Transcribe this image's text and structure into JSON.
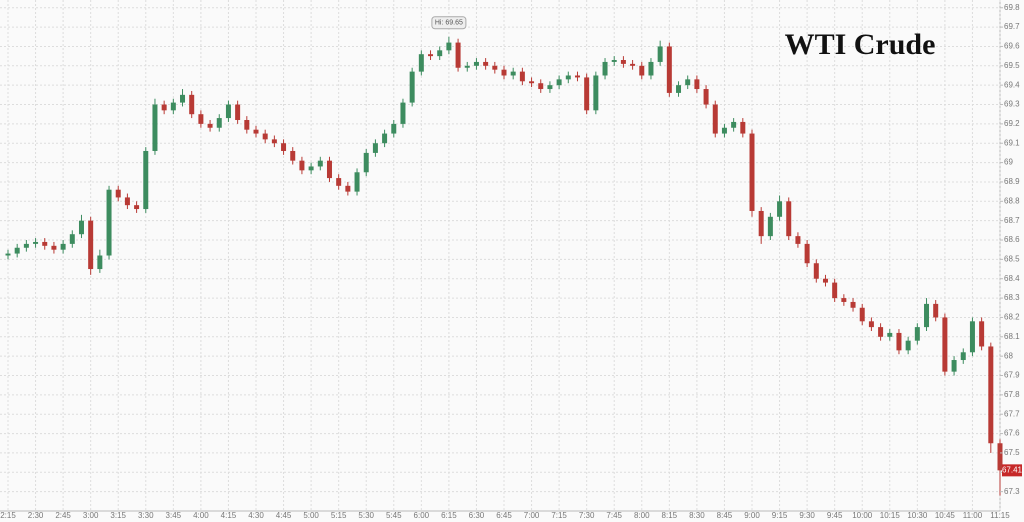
{
  "chart_data": {
    "type": "candlestick",
    "title": "WTI Crude",
    "categories": [
      "2:15",
      null,
      null,
      "2:30",
      null,
      null,
      "2:45",
      null,
      null,
      "3:00",
      null,
      null,
      "3:15",
      null,
      null,
      "3:30",
      null,
      null,
      "3:45",
      null,
      null,
      "4:00",
      null,
      null,
      "4:15",
      null,
      null,
      "4:30",
      null,
      null,
      "4:45",
      null,
      null,
      "5:00",
      null,
      null,
      "5:15",
      null,
      null,
      "5:30",
      null,
      null,
      "5:45",
      null,
      null,
      "6:00",
      null,
      null,
      "6:15",
      null,
      null,
      "6:30",
      null,
      null,
      "6:45",
      null,
      null,
      "7:00",
      null,
      null,
      "7:15",
      null,
      null,
      "7:30",
      null,
      null,
      "7:45",
      null,
      null,
      "8:00",
      null,
      null,
      "8:15",
      null,
      null,
      "8:30",
      null,
      null,
      "8:45",
      null,
      null,
      "9:00",
      null,
      null,
      "9:15",
      null,
      null,
      "9:30",
      null,
      null,
      "9:45",
      null,
      null,
      "10:00",
      null,
      null,
      "10:15",
      null,
      null,
      "10:30",
      null,
      null,
      "10:45",
      null,
      null,
      "11:00",
      null,
      null,
      "11:15"
    ],
    "open": [
      68.52,
      68.53,
      68.56,
      68.58,
      68.59,
      68.57,
      68.55,
      68.58,
      68.63,
      68.7,
      68.45,
      68.52,
      68.86,
      68.82,
      68.78,
      68.76,
      69.06,
      69.3,
      69.27,
      69.31,
      69.35,
      69.25,
      69.2,
      69.18,
      69.23,
      69.3,
      69.22,
      69.17,
      69.15,
      69.12,
      69.1,
      69.06,
      69.01,
      68.96,
      68.98,
      69.01,
      68.92,
      68.88,
      68.85,
      68.95,
      69.05,
      69.1,
      69.15,
      69.2,
      69.31,
      69.47,
      69.56,
      69.55,
      69.58,
      69.62,
      69.49,
      69.5,
      69.52,
      69.5,
      69.48,
      69.45,
      69.47,
      69.42,
      69.41,
      69.38,
      69.4,
      69.43,
      69.45,
      69.44,
      69.27,
      69.45,
      69.52,
      69.53,
      69.51,
      69.5,
      69.45,
      69.52,
      69.6,
      69.36,
      69.4,
      69.43,
      69.38,
      69.3,
      69.15,
      69.18,
      69.21,
      69.15,
      68.75,
      68.62,
      68.72,
      68.8,
      68.62,
      68.58,
      68.48,
      68.4,
      68.38,
      68.3,
      68.28,
      68.25,
      68.18,
      68.15,
      68.1,
      68.12,
      68.03,
      68.08,
      68.15,
      68.27,
      68.2,
      67.92,
      67.98,
      68.02,
      68.18,
      68.05,
      67.55
    ],
    "high": [
      68.55,
      68.58,
      68.6,
      68.61,
      68.61,
      68.59,
      68.6,
      68.65,
      68.73,
      68.72,
      68.55,
      68.88,
      68.88,
      68.84,
      68.8,
      69.08,
      69.33,
      69.32,
      69.33,
      69.38,
      69.37,
      69.27,
      69.22,
      69.25,
      69.32,
      69.32,
      69.24,
      69.19,
      69.17,
      69.14,
      69.12,
      69.08,
      69.03,
      69.0,
      69.03,
      69.03,
      68.94,
      68.9,
      68.97,
      69.07,
      69.12,
      69.17,
      69.22,
      69.33,
      69.49,
      69.58,
      69.58,
      69.6,
      69.65,
      69.64,
      69.52,
      69.54,
      69.54,
      69.52,
      69.5,
      69.49,
      69.49,
      69.44,
      69.43,
      69.42,
      69.45,
      69.47,
      69.47,
      69.46,
      69.47,
      69.54,
      69.55,
      69.55,
      69.53,
      69.52,
      69.54,
      69.63,
      69.62,
      69.42,
      69.45,
      69.45,
      69.4,
      69.32,
      69.2,
      69.23,
      69.23,
      69.17,
      68.77,
      68.74,
      68.83,
      68.82,
      68.64,
      68.6,
      68.5,
      68.42,
      68.4,
      68.32,
      68.3,
      68.27,
      68.2,
      68.17,
      68.14,
      68.14,
      68.1,
      68.17,
      68.3,
      68.29,
      68.22,
      68.0,
      68.04,
      68.2,
      68.2,
      68.07,
      67.57
    ],
    "low": [
      68.5,
      68.51,
      68.54,
      68.56,
      68.55,
      68.53,
      68.53,
      68.56,
      68.61,
      68.42,
      68.43,
      68.5,
      68.8,
      68.76,
      68.74,
      68.74,
      69.04,
      69.25,
      69.25,
      69.29,
      69.23,
      69.18,
      69.16,
      69.16,
      69.21,
      69.2,
      69.15,
      69.13,
      69.1,
      69.08,
      69.04,
      68.99,
      68.94,
      68.94,
      68.96,
      68.9,
      68.86,
      68.83,
      68.83,
      68.93,
      69.03,
      69.08,
      69.13,
      69.18,
      69.29,
      69.45,
      69.53,
      69.53,
      69.56,
      69.47,
      69.47,
      69.48,
      69.48,
      69.46,
      69.43,
      69.43,
      69.4,
      69.39,
      69.36,
      69.36,
      69.38,
      69.41,
      69.42,
      69.25,
      69.25,
      69.43,
      69.5,
      69.49,
      69.48,
      69.43,
      69.43,
      69.5,
      69.34,
      69.34,
      69.38,
      69.36,
      69.28,
      69.13,
      69.13,
      69.16,
      69.13,
      68.72,
      68.58,
      68.6,
      68.7,
      68.6,
      68.56,
      68.46,
      68.38,
      68.36,
      68.28,
      68.26,
      68.23,
      68.16,
      68.13,
      68.08,
      68.08,
      68.01,
      68.01,
      68.06,
      68.13,
      68.18,
      67.9,
      67.9,
      67.96,
      68.0,
      68.03,
      67.5,
      67.28
    ],
    "close": [
      68.53,
      68.56,
      68.58,
      68.59,
      68.57,
      68.55,
      68.58,
      68.63,
      68.7,
      68.45,
      68.52,
      68.86,
      68.82,
      68.78,
      68.76,
      69.06,
      69.3,
      69.27,
      69.31,
      69.35,
      69.25,
      69.2,
      69.18,
      69.23,
      69.3,
      69.22,
      69.17,
      69.15,
      69.12,
      69.1,
      69.06,
      69.01,
      68.96,
      68.98,
      69.01,
      68.92,
      68.88,
      68.85,
      68.95,
      69.05,
      69.1,
      69.15,
      69.2,
      69.31,
      69.47,
      69.56,
      69.55,
      69.58,
      69.62,
      69.49,
      69.5,
      69.52,
      69.5,
      69.48,
      69.45,
      69.47,
      69.42,
      69.41,
      69.38,
      69.4,
      69.43,
      69.45,
      69.44,
      69.27,
      69.45,
      69.52,
      69.53,
      69.51,
      69.5,
      69.45,
      69.52,
      69.6,
      69.36,
      69.4,
      69.43,
      69.38,
      69.3,
      69.15,
      69.18,
      69.21,
      69.15,
      68.75,
      68.62,
      68.72,
      68.8,
      68.62,
      68.58,
      68.48,
      68.4,
      68.38,
      68.3,
      68.28,
      68.25,
      68.18,
      68.15,
      68.1,
      68.12,
      68.03,
      68.08,
      68.15,
      68.27,
      68.2,
      67.92,
      67.98,
      68.02,
      68.18,
      68.05,
      67.55,
      67.41
    ],
    "up_color": "#3d8c5f",
    "down_color": "#b83a35",
    "ylim": [
      67.2,
      69.84
    ],
    "yticks": [
      67.3,
      67.4,
      67.5,
      67.6,
      67.7,
      67.8,
      67.9,
      68,
      68.1,
      68.2,
      68.3,
      68.4,
      68.5,
      68.6,
      68.7,
      68.8,
      68.9,
      69,
      69.1,
      69.2,
      69.3,
      69.4,
      69.5,
      69.6,
      69.7,
      69.8
    ],
    "grid": true,
    "annotations": [
      {
        "text": "Hi: 69.65",
        "value": 69.65
      }
    ],
    "last_price": {
      "value": 67.41,
      "label": "67.41",
      "color": "#c62828"
    }
  }
}
